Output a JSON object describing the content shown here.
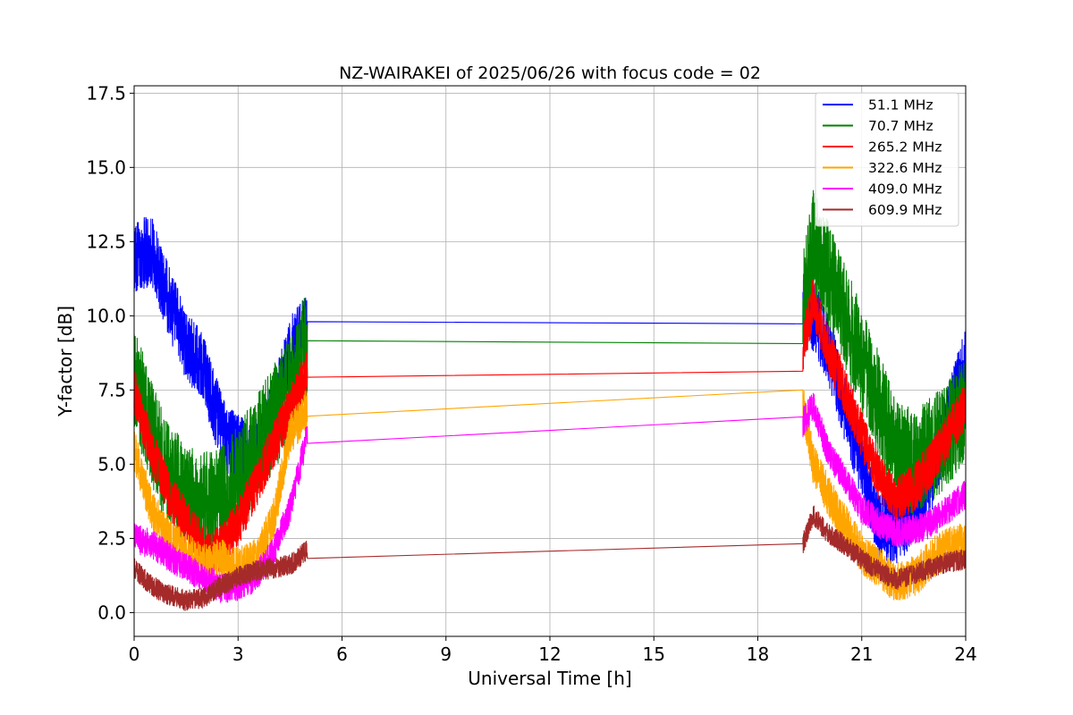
{
  "chart_data": {
    "type": "line",
    "title": "NZ-WAIRAKEI of 2025/06/26 with focus code = 02",
    "xlabel": "Universal Time [h]",
    "ylabel": "Y-factor [dB]",
    "xlim": [
      0,
      24
    ],
    "ylim": [
      -0.8,
      17.75
    ],
    "xticks": [
      0,
      3,
      6,
      9,
      12,
      15,
      18,
      21,
      24
    ],
    "xtick_labels": [
      "0",
      "3",
      "6",
      "9",
      "12",
      "15",
      "18",
      "21",
      "24"
    ],
    "yticks": [
      0,
      2.5,
      5,
      7.5,
      10,
      12.5,
      15,
      17.5
    ],
    "ytick_labels": [
      "0.0",
      "2.5",
      "5.0",
      "7.5",
      "10.0",
      "12.5",
      "15.0",
      "17.5"
    ],
    "grid": true,
    "legend_position": "top-right",
    "series": [
      {
        "name": " 51.1 MHz",
        "color": "#0000ff",
        "x": [
          0,
          0.5,
          1,
          1.5,
          2,
          2.3,
          2.6,
          3,
          3.4,
          3.8,
          4.2,
          4.6,
          5,
          19.3,
          19.6,
          20,
          20.5,
          21,
          21.5,
          22,
          22.5,
          23,
          23.5,
          24
        ],
        "y": [
          12.0,
          12.2,
          10.5,
          9.0,
          8.2,
          7.0,
          6.0,
          5.5,
          5.2,
          6.0,
          7.5,
          9.0,
          9.6,
          10.1,
          10.0,
          9.0,
          7.0,
          5.0,
          3.0,
          2.8,
          3.5,
          4.5,
          6.5,
          8.5
        ],
        "amp": 1.2
      },
      {
        "name": " 70.7 MHz",
        "color": "#008000",
        "x": [
          0,
          0.5,
          1,
          1.5,
          2,
          2.5,
          3,
          3.5,
          4,
          4.5,
          5,
          19.3,
          19.6,
          20,
          20.5,
          21,
          21.5,
          22,
          22.5,
          23,
          23.5,
          24
        ],
        "y": [
          8.0,
          6.0,
          4.5,
          4.0,
          3.6,
          3.8,
          4.5,
          5.5,
          6.5,
          7.5,
          9.2,
          10.2,
          12.5,
          11.5,
          10.0,
          8.5,
          7.0,
          5.5,
          5.0,
          5.5,
          6.0,
          7.0
        ],
        "amp": 1.8
      },
      {
        "name": "265.2 MHz",
        "color": "#ff0000",
        "x": [
          0,
          0.5,
          1,
          1.5,
          2,
          2.3,
          2.6,
          3,
          5,
          19.3,
          19.6,
          20,
          20.5,
          21,
          21.5,
          22,
          22.5,
          23,
          23.5,
          24
        ],
        "y": [
          7.5,
          5.5,
          4.0,
          3.0,
          2.2,
          2.0,
          2.3,
          3.0,
          8.1,
          8.9,
          10.5,
          9.0,
          7.5,
          6.0,
          4.5,
          3.8,
          4.2,
          5.0,
          6.0,
          7.0
        ],
        "amp": 0.8
      },
      {
        "name": "322.6 MHz",
        "color": "#ffa500",
        "x": [
          0,
          0.5,
          1,
          1.5,
          2,
          2.5,
          3,
          3.5,
          4,
          4.5,
          5,
          19.3,
          19.6,
          20,
          20.5,
          21,
          21.5,
          22,
          22.5,
          23,
          23.5,
          24
        ],
        "y": [
          5.5,
          3.5,
          2.5,
          2.0,
          1.6,
          1.8,
          1.5,
          1.8,
          3.0,
          6.0,
          6.9,
          7.0,
          5.0,
          4.0,
          3.0,
          2.0,
          1.5,
          1.0,
          1.2,
          1.8,
          2.2,
          2.4
        ],
        "amp": 0.7
      },
      {
        "name": "409.0 MHz",
        "color": "#ff00ff",
        "x": [
          0,
          0.5,
          1,
          1.5,
          2,
          2.5,
          3,
          3.5,
          4,
          4.5,
          5,
          19.3,
          19.6,
          20,
          20.5,
          21,
          21.5,
          22,
          22.5,
          23,
          23.5,
          24
        ],
        "y": [
          2.5,
          2.3,
          1.9,
          1.5,
          1.2,
          0.8,
          0.9,
          1.2,
          2.0,
          3.5,
          6.0,
          6.4,
          7.0,
          5.5,
          4.5,
          3.5,
          3.0,
          2.7,
          2.8,
          3.0,
          3.5,
          4.0
        ],
        "amp": 0.5
      },
      {
        "name": "609.9 MHz",
        "color": "#a52a2a",
        "x": [
          0,
          0.5,
          1,
          1.5,
          2,
          2.5,
          3,
          3.5,
          4,
          4.5,
          5,
          19.3,
          19.6,
          20,
          20.5,
          21,
          21.5,
          22,
          22.5,
          23,
          23.5,
          24
        ],
        "y": [
          1.5,
          0.9,
          0.6,
          0.4,
          0.5,
          0.9,
          1.2,
          1.4,
          1.5,
          1.6,
          2.1,
          2.3,
          3.3,
          2.7,
          2.3,
          1.8,
          1.4,
          1.1,
          1.3,
          1.5,
          1.7,
          1.8
        ],
        "amp": 0.35
      }
    ]
  }
}
